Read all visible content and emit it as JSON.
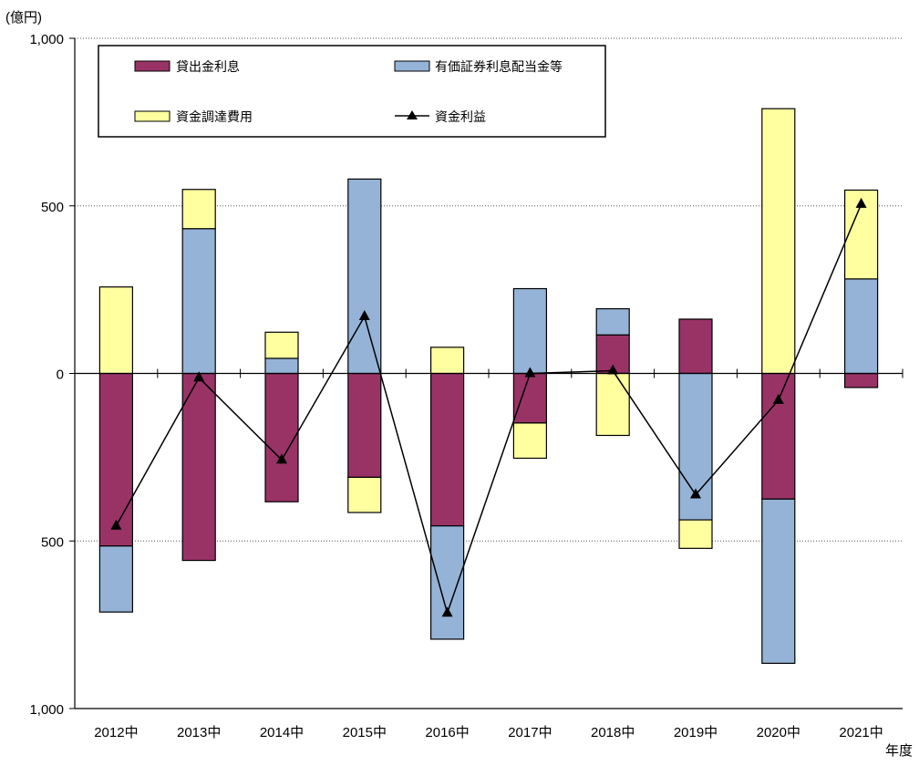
{
  "chart_data": {
    "type": "bar",
    "stacked": true,
    "unit_label": "(億円)",
    "xlabel": "年度",
    "categories": [
      "2012中",
      "2013中",
      "2014中",
      "2015中",
      "2016中",
      "2017中",
      "2018中",
      "2019中",
      "2020中",
      "2021中"
    ],
    "ylim": [
      -1000,
      1000
    ],
    "yticks": [
      1000,
      500,
      0,
      -500,
      -1000
    ],
    "ytick_labels": [
      "1,000",
      "500",
      "0",
      "500",
      "1,000"
    ],
    "grid": "horizontal-dotted",
    "legend_position": "top-left",
    "series": [
      {
        "name": "貸出金利息",
        "kind": "bar",
        "color": "#993366",
        "values": [
          -515,
          -558,
          -383,
          -310,
          -455,
          -148,
          115,
          162,
          -375,
          -42
        ]
      },
      {
        "name": "有価証券利息配当金等",
        "kind": "bar",
        "color": "#95B3D7",
        "values": [
          -197,
          432,
          45,
          580,
          -338,
          253,
          78,
          -437,
          -490,
          282
        ]
      },
      {
        "name": "資金調達費用",
        "kind": "bar",
        "color": "#FFFFA0",
        "values": [
          258,
          117,
          78,
          -105,
          78,
          -105,
          -185,
          -85,
          790,
          265
        ]
      },
      {
        "name": "資金利益",
        "kind": "line",
        "color": "#000000",
        "marker": "triangle",
        "values": [
          -455,
          -13,
          -258,
          170,
          -715,
          0,
          8,
          -362,
          -80,
          505
        ]
      }
    ]
  }
}
